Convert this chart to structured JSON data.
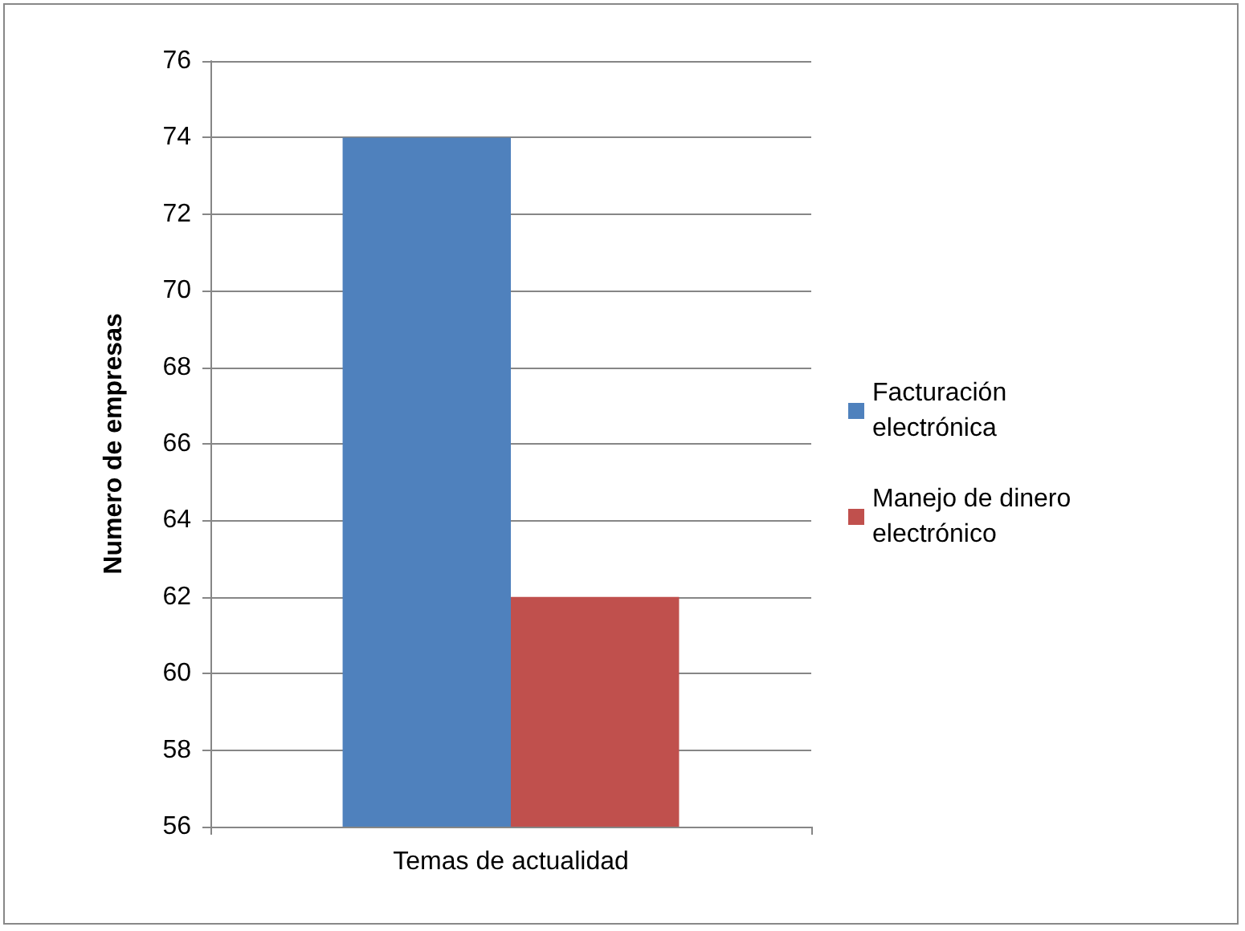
{
  "chart_data": {
    "type": "bar",
    "ylabel": "Numero de empresas",
    "categories": [
      "Temas de actualidad"
    ],
    "series": [
      {
        "name": "Facturación electrónica",
        "color": "#4f81bd",
        "values": [
          74
        ]
      },
      {
        "name": "Manejo de dinero electrónico",
        "color": "#c0504d",
        "values": [
          62
        ]
      }
    ],
    "ylim": [
      56,
      76
    ],
    "yticks": [
      56,
      58,
      60,
      62,
      64,
      66,
      68,
      70,
      72,
      74,
      76
    ],
    "grid": "y",
    "legend": "right"
  }
}
